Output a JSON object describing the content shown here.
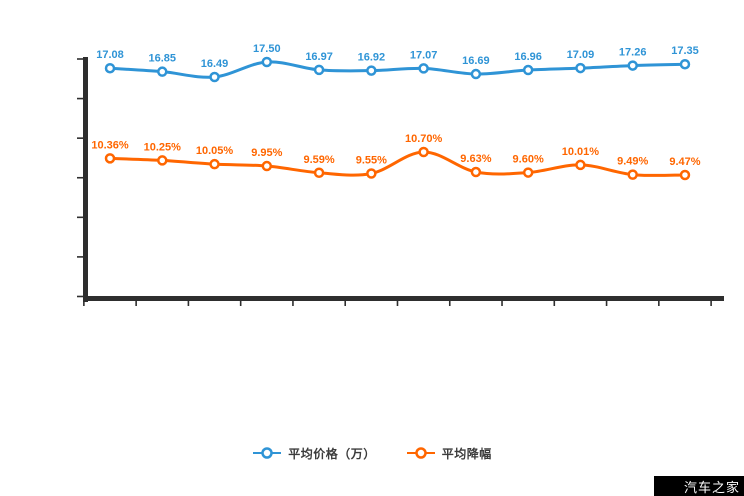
{
  "chart_data": {
    "type": "line",
    "x_points": 12,
    "x_tick_labels_visible": false,
    "y_tick_labels_visible": false,
    "grid": false,
    "legend_position": "bottom-center",
    "axis_color": "#2e2e2e",
    "series": [
      {
        "name": "平均价格（万）",
        "color": "#2f94d6",
        "label_suffix": "",
        "values": [
          17.08,
          16.85,
          16.49,
          17.5,
          16.97,
          16.92,
          17.07,
          16.69,
          16.96,
          17.09,
          17.26,
          17.35
        ]
      },
      {
        "name": "平均降幅",
        "color": "#ff6600",
        "label_suffix": "%",
        "values": [
          10.36,
          10.25,
          10.05,
          9.95,
          9.59,
          9.55,
          10.7,
          9.63,
          9.6,
          10.01,
          9.49,
          9.47
        ]
      }
    ]
  },
  "watermark": {
    "text": "汽车之家",
    "bg": "#000000",
    "fg": "#ffffff"
  }
}
